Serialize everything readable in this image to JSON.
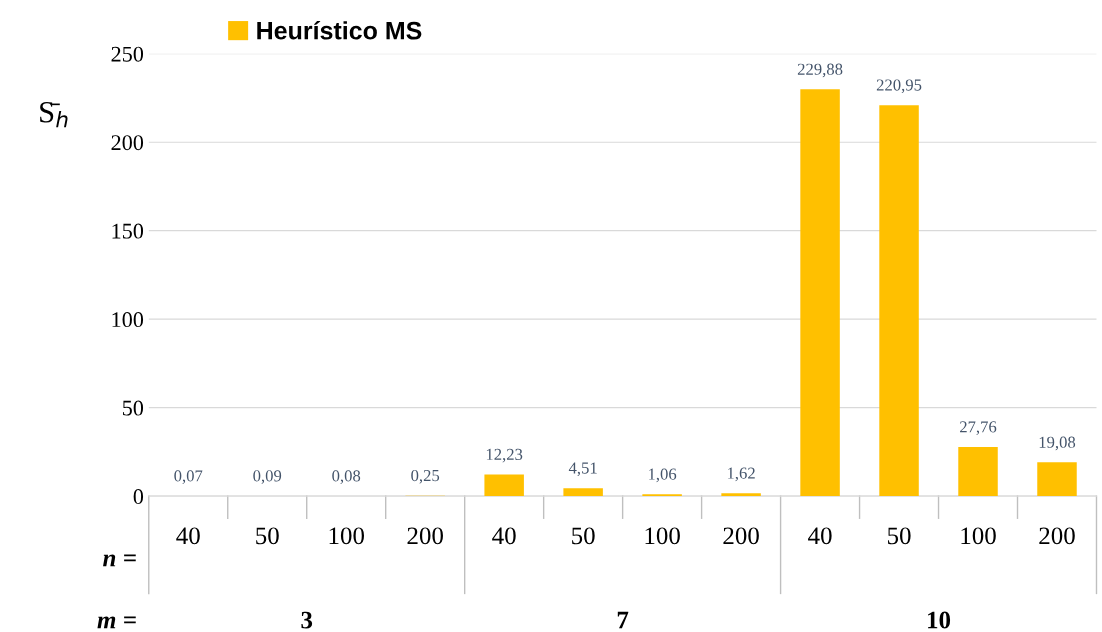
{
  "chart_data": {
    "type": "bar",
    "ylabel": "S̄$_{h}$",
    "categories": [
      "40",
      "50",
      "100",
      "200",
      "40",
      "50",
      "100",
      "200",
      "40",
      "50",
      "100",
      "200"
    ],
    "series": [
      {
        "name": "Heurístico MS",
        "color": "#ffc000",
        "values": [
          0.07,
          0.09,
          0.08,
          0.25,
          12.23,
          4.51,
          1.06,
          1.62,
          229.88,
          220.95,
          27.76,
          19.08
        ],
        "value_labels": [
          "0,07",
          "0,09",
          "0,08",
          "0,25",
          "12,23",
          "4,51",
          "1,06",
          "1,62",
          "229,88",
          "220,95",
          "27,76",
          "19,08"
        ]
      }
    ],
    "ylim": [
      0,
      250
    ],
    "yticks": [
      0,
      50,
      100,
      150,
      200,
      250
    ],
    "grid": "y",
    "legend": "top left",
    "annotations": [
      "n =",
      "m =",
      "3",
      "7",
      "10"
    ]
  }
}
